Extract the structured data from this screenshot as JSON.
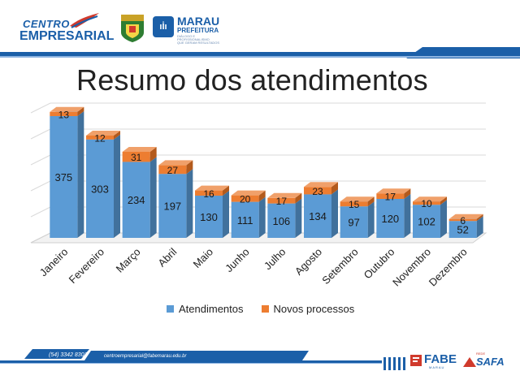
{
  "header": {
    "logo_line1": "CENTRO",
    "logo_line2": "EMPRESARIAL",
    "marau_title": "MARAU",
    "marau_sub": "PREFEITURA",
    "marau_tag1": "DIÁLOGO E PROFISSIONALISMO",
    "marau_tag2": "QUE GERAM RESULTADOS"
  },
  "footer": {
    "phone": "(54) 3342 8301",
    "email": "centroempresarial@fabemarau.edu.br",
    "fabe": "FABE",
    "fabe_sub": "MARAU",
    "safa": "SAFA",
    "safa_sub": "REDE"
  },
  "colors": {
    "blue": "#5b9bd5",
    "blue_dark": "#41719c",
    "orange": "#ed7d31",
    "orange_dark": "#b35a1c",
    "brand_blue": "#1b5fa8",
    "brand_red": "#d03a2c"
  },
  "chart_data": {
    "type": "bar",
    "stacked": true,
    "title": "Resumo dos atendimentos",
    "categories": [
      "Janeiro",
      "Fevereiro",
      "Março",
      "Abril",
      "Maio",
      "Junho",
      "Julho",
      "Agosto",
      "Setembro",
      "Outubro",
      "Novembro",
      "Dezembro"
    ],
    "series": [
      {
        "name": "Atendimentos",
        "values": [
          375,
          303,
          234,
          197,
          130,
          111,
          106,
          134,
          97,
          120,
          102,
          52
        ]
      },
      {
        "name": "Novos processos",
        "values": [
          13,
          12,
          31,
          27,
          16,
          20,
          17,
          23,
          15,
          17,
          10,
          6
        ]
      }
    ],
    "ylim": [
      0,
      400
    ],
    "grid": true,
    "legend": "bottom"
  }
}
